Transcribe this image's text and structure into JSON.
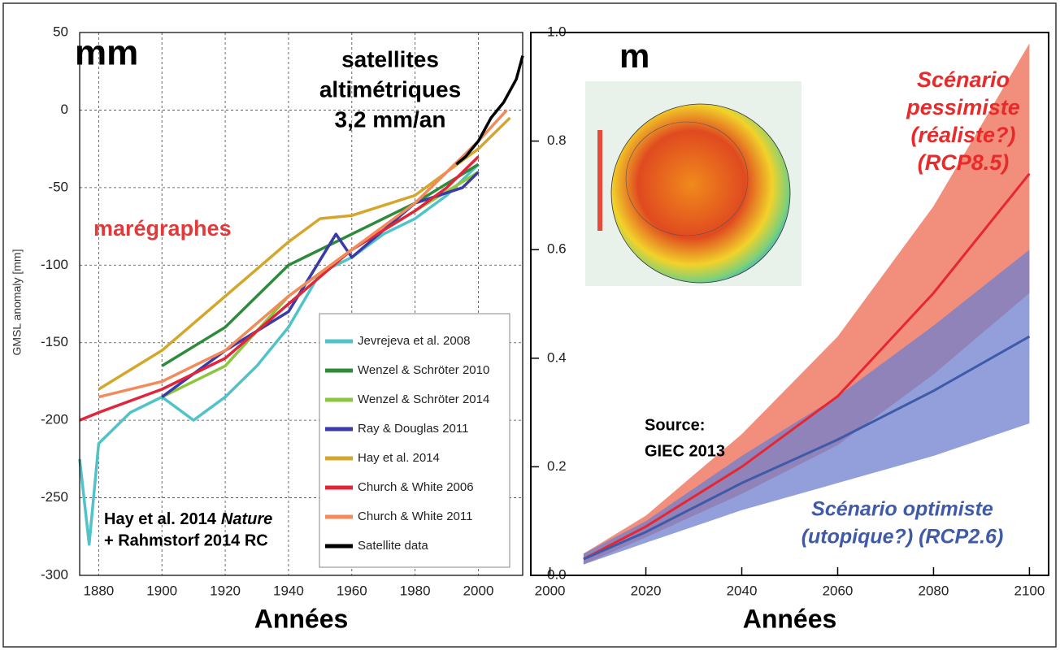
{
  "chart_data": [
    {
      "type": "line",
      "y_label": "GMSL anomaly [mm]",
      "x_label": "Années",
      "xlim": [
        1874,
        2014
      ],
      "ylim": [
        -300,
        50
      ],
      "xticks": [
        1880,
        1900,
        1920,
        1940,
        1960,
        1980,
        2000
      ],
      "yticks": [
        -300,
        -250,
        -200,
        -150,
        -100,
        -50,
        0,
        50
      ],
      "grid": true,
      "annotations": [
        [
          "mm"
        ],
        [
          "satellites",
          "altimétriques",
          "3,2 mm/an"
        ],
        [
          "marégraphes"
        ],
        [
          "Hay et al. 2014",
          "Nature",
          "+ Rahmstorf 2014 RC"
        ]
      ],
      "series": [
        {
          "name": "Jevrejeva et al. 2008",
          "color": "#4fc3c8",
          "x": [
            1874,
            1877,
            1880,
            1890,
            1900,
            1910,
            1920,
            1930,
            1940,
            1950,
            1960,
            1970,
            1980,
            1990,
            2000
          ],
          "values": [
            -225,
            -280,
            -215,
            -195,
            -185,
            -200,
            -185,
            -165,
            -140,
            -105,
            -95,
            -80,
            -70,
            -55,
            -35
          ]
        },
        {
          "name": "Wenzel & Schröter 2010",
          "color": "#2e8b3a",
          "x": [
            1900,
            1920,
            1940,
            1960,
            1980,
            2000
          ],
          "values": [
            -165,
            -140,
            -100,
            -80,
            -60,
            -35
          ]
        },
        {
          "name": "Wenzel & Schröter 2014",
          "color": "#8cc63f",
          "x": [
            1900,
            1920,
            1940,
            1960,
            1980,
            2000
          ],
          "values": [
            -185,
            -165,
            -120,
            -90,
            -65,
            -40
          ]
        },
        {
          "name": "Ray & Douglas 2011",
          "color": "#3a3aa8",
          "x": [
            1900,
            1920,
            1940,
            1955,
            1960,
            1980,
            1995,
            2000
          ],
          "values": [
            -185,
            -155,
            -130,
            -80,
            -95,
            -60,
            -50,
            -40
          ]
        },
        {
          "name": "Hay et al. 2014",
          "color": "#d4a72c",
          "x": [
            1880,
            1900,
            1920,
            1940,
            1950,
            1960,
            1980,
            2000,
            2010
          ],
          "values": [
            -180,
            -155,
            -120,
            -85,
            -70,
            -68,
            -55,
            -25,
            -5
          ]
        },
        {
          "name": "Church & White 2006",
          "color": "#e0263a",
          "x": [
            1874,
            1880,
            1900,
            1920,
            1940,
            1960,
            1980,
            1990,
            2000
          ],
          "values": [
            -200,
            -195,
            -180,
            -160,
            -125,
            -90,
            -65,
            -50,
            -30
          ]
        },
        {
          "name": "Church & White 2011",
          "color": "#f28a5a",
          "x": [
            1880,
            1900,
            1920,
            1940,
            1960,
            1980,
            2000,
            2009
          ],
          "values": [
            -185,
            -175,
            -155,
            -120,
            -90,
            -60,
            -20,
            0
          ]
        },
        {
          "name": "Satellite data",
          "color": "#000000",
          "x": [
            1993,
            1996,
            2000,
            2004,
            2008,
            2012,
            2014
          ],
          "values": [
            -35,
            -30,
            -20,
            -5,
            5,
            20,
            35
          ]
        }
      ]
    },
    {
      "type": "area",
      "x_label": "Années",
      "xlim": [
        1996,
        2104
      ],
      "ylim": [
        0,
        1
      ],
      "xticks": [
        2000,
        2020,
        2040,
        2060,
        2080,
        2100
      ],
      "yticks": [
        {
          "value": 0,
          "label": "0.0"
        },
        0.2,
        0.4,
        0.6,
        0.8,
        {
          "value": 1,
          "label": "1.0"
        }
      ],
      "grid": false,
      "annotations": [
        [
          "m"
        ],
        [
          "Scénario",
          "pessimiste",
          "(réaliste?)",
          "(RCP8.5)"
        ],
        [
          "Scénario optimiste",
          "(utopique?) (RCP2.6)"
        ],
        [
          "Source:",
          "GIEC 2013"
        ]
      ],
      "series": [
        {
          "color": "#e8262f",
          "band_color": "#ee6a50",
          "x": [
            2007,
            2020,
            2040,
            2060,
            2080,
            2100
          ],
          "values": [
            0.03,
            0.09,
            0.2,
            0.33,
            0.52,
            0.74
          ],
          "low": [
            0.02,
            0.07,
            0.15,
            0.24,
            0.37,
            0.52
          ],
          "high": [
            0.04,
            0.11,
            0.26,
            0.44,
            0.68,
            0.98
          ]
        },
        {
          "color": "#3f5aa8",
          "band_color": "#6f7fcf",
          "x": [
            2007,
            2020,
            2040,
            2060,
            2080,
            2100
          ],
          "values": [
            0.03,
            0.08,
            0.17,
            0.25,
            0.34,
            0.44
          ],
          "low": [
            0.02,
            0.06,
            0.12,
            0.17,
            0.22,
            0.28
          ],
          "high": [
            0.04,
            0.1,
            0.22,
            0.33,
            0.46,
            0.6
          ]
        }
      ]
    }
  ]
}
